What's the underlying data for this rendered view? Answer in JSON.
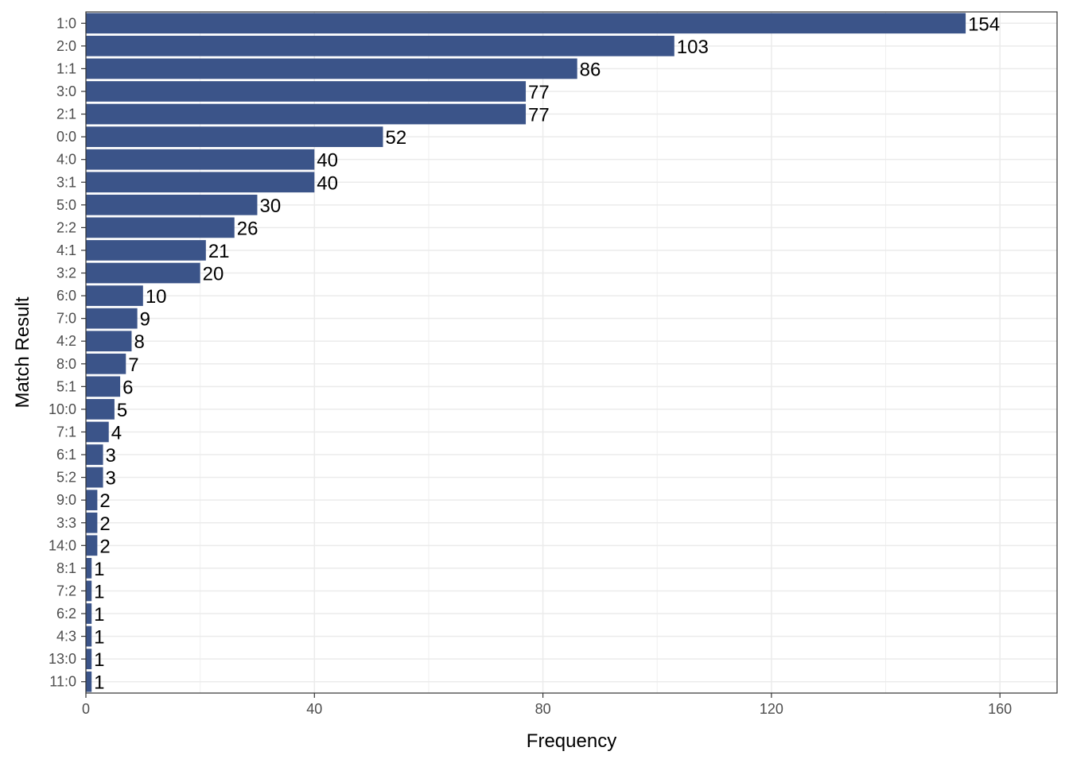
{
  "chart_data": {
    "type": "bar",
    "orientation": "horizontal",
    "title": "",
    "xlabel": "Frequency",
    "ylabel": "Match Result",
    "categories": [
      "1:0",
      "2:0",
      "1:1",
      "3:0",
      "2:1",
      "0:0",
      "4:0",
      "3:1",
      "5:0",
      "2:2",
      "4:1",
      "3:2",
      "6:0",
      "7:0",
      "4:2",
      "8:0",
      "5:1",
      "10:0",
      "7:1",
      "6:1",
      "5:2",
      "9:0",
      "3:3",
      "14:0",
      "8:1",
      "7:2",
      "6:2",
      "4:3",
      "13:0",
      "11:0"
    ],
    "values": [
      154,
      103,
      86,
      77,
      77,
      52,
      40,
      40,
      30,
      26,
      21,
      20,
      10,
      9,
      8,
      7,
      6,
      5,
      4,
      3,
      3,
      2,
      2,
      2,
      1,
      1,
      1,
      1,
      1,
      1
    ],
    "xlim": [
      0,
      170
    ],
    "x_ticks": [
      0,
      40,
      80,
      120,
      160
    ],
    "grid": true,
    "legend": "none",
    "bar_color": "#3b5489",
    "data_labels": true
  }
}
